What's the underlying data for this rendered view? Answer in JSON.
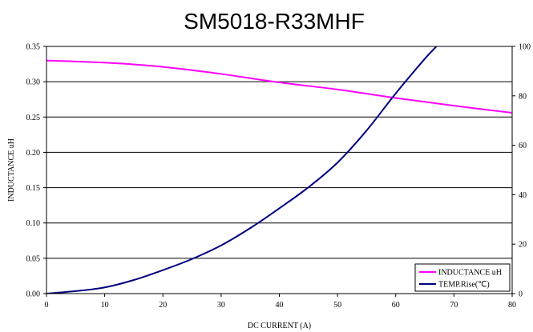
{
  "chart_data": {
    "type": "line",
    "title": "SM5018-R33MHF",
    "xlabel": "DC CURRENT  (A)",
    "ylabel": "INDUCTANCE uH",
    "xlim": [
      0,
      80
    ],
    "ylim": [
      0,
      0.35
    ],
    "y2lim": [
      0,
      100
    ],
    "x_ticks": [
      "0",
      "10",
      "20",
      "30",
      "40",
      "50",
      "60",
      "70",
      "80"
    ],
    "y_ticks": [
      "0.00",
      "0.05",
      "0.10",
      "0.15",
      "0.20",
      "0.25",
      "0.30",
      "0.35"
    ],
    "y2_ticks": [
      "0",
      "20",
      "40",
      "60",
      "80",
      "100"
    ],
    "grid": "horizontal",
    "legend_position": "bottom-right",
    "series": [
      {
        "name": "INDUCTANCE uH",
        "color": "#ff00ff",
        "axis": "left",
        "x": [
          0,
          10,
          20,
          30,
          40,
          50,
          60,
          70,
          80
        ],
        "values": [
          0.33,
          0.327,
          0.321,
          0.311,
          0.299,
          0.289,
          0.277,
          0.266,
          0.256
        ]
      },
      {
        "name": "TEMP.Rise(℃)",
        "color": "#000080",
        "axis": "right",
        "x": [
          0,
          5,
          10,
          15,
          20,
          25,
          30,
          35,
          40,
          45,
          50,
          55,
          60,
          65,
          67
        ],
        "values": [
          0,
          1,
          2.5,
          5.5,
          9.5,
          14,
          19.5,
          26.5,
          34.5,
          43,
          53,
          66,
          81,
          95,
          100
        ]
      }
    ]
  }
}
